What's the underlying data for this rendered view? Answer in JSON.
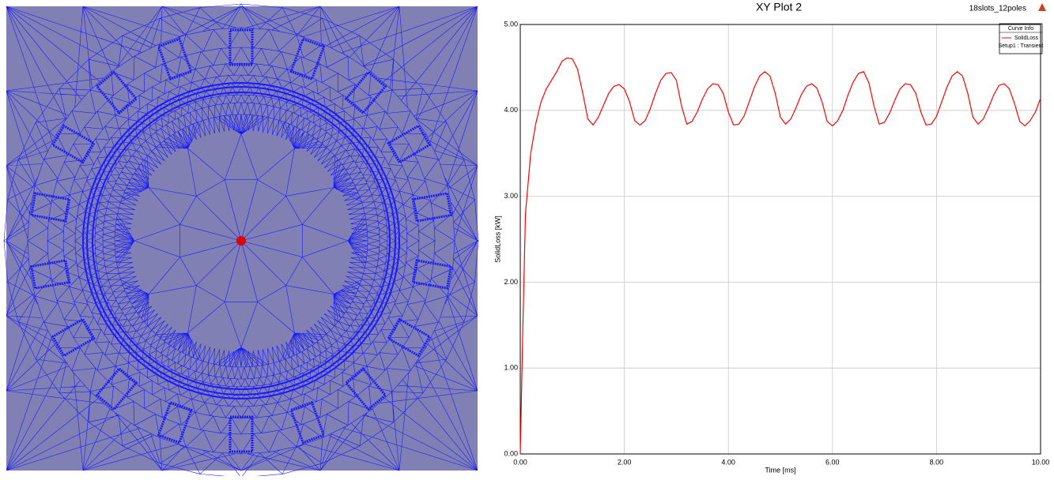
{
  "chart_data": {
    "type": "line",
    "title": "XY Plot 2",
    "annotation": "18slots_12poles",
    "legend_title": "Curve Info",
    "x_label": "Time [ms]",
    "y_label": "SolidLoss [kW]",
    "x": [
      0,
      0.05,
      0.1,
      0.2,
      0.3,
      0.4,
      0.5,
      0.6,
      0.7,
      0.8,
      0.9,
      1.0,
      1.1,
      1.2,
      1.3,
      1.4,
      1.5,
      1.6,
      1.7,
      1.8,
      1.9,
      2.0,
      2.1,
      2.2,
      2.3,
      2.4,
      2.5,
      2.6,
      2.7,
      2.8,
      2.9,
      3.0,
      3.1,
      3.2,
      3.3,
      3.4,
      3.5,
      3.6,
      3.7,
      3.8,
      3.9,
      4.0,
      4.1,
      4.2,
      4.3,
      4.4,
      4.5,
      4.6,
      4.7,
      4.8,
      4.9,
      5.0,
      5.1,
      5.2,
      5.3,
      5.4,
      5.5,
      5.6,
      5.7,
      5.8,
      5.9,
      6.0,
      6.1,
      6.2,
      6.3,
      6.4,
      6.5,
      6.6,
      6.7,
      6.8,
      6.9,
      7.0,
      7.1,
      7.2,
      7.3,
      7.4,
      7.5,
      7.6,
      7.7,
      7.8,
      7.9,
      8.0,
      8.1,
      8.2,
      8.3,
      8.4,
      8.5,
      8.6,
      8.7,
      8.8,
      8.9,
      9.0,
      9.1,
      9.2,
      9.3,
      9.4,
      9.5,
      9.6,
      9.7,
      9.8,
      9.9,
      10.0
    ],
    "series": [
      {
        "name": "SolidLoss",
        "setup": "Setup1 : Transient",
        "color": "#ff0000",
        "values": [
          0,
          1.5,
          2.8,
          3.5,
          3.85,
          4.1,
          4.25,
          4.35,
          4.45,
          4.57,
          4.61,
          4.6,
          4.48,
          4.2,
          3.9,
          3.83,
          3.92,
          4.06,
          4.2,
          4.28,
          4.3,
          4.25,
          4.1,
          3.88,
          3.83,
          3.88,
          4.02,
          4.2,
          4.35,
          4.43,
          4.44,
          4.35,
          4.05,
          3.84,
          3.87,
          3.98,
          4.13,
          4.25,
          4.31,
          4.3,
          4.2,
          3.98,
          3.83,
          3.84,
          3.93,
          4.1,
          4.27,
          4.4,
          4.45,
          4.4,
          4.2,
          3.92,
          3.84,
          3.9,
          4.03,
          4.18,
          4.28,
          4.31,
          4.26,
          4.1,
          3.87,
          3.82,
          3.88,
          4.0,
          4.18,
          4.33,
          4.43,
          4.45,
          4.32,
          4.05,
          3.84,
          3.86,
          3.97,
          4.12,
          4.25,
          4.31,
          4.3,
          4.2,
          3.98,
          3.83,
          3.84,
          3.93,
          4.1,
          4.27,
          4.4,
          4.45,
          4.4,
          4.2,
          3.92,
          3.84,
          3.9,
          4.03,
          4.18,
          4.29,
          4.31,
          4.25,
          4.08,
          3.87,
          3.82,
          3.88,
          3.98,
          4.14
        ]
      }
    ],
    "xlim": [
      0,
      10
    ],
    "ylim": [
      0,
      5
    ],
    "xticks": [
      {
        "value": 0,
        "label": "0.00"
      },
      {
        "value": 2,
        "label": "2.00"
      },
      {
        "value": 4,
        "label": "4.00"
      },
      {
        "value": 6,
        "label": "6.00"
      },
      {
        "value": 8,
        "label": "8.00"
      },
      {
        "value": 10,
        "label": "10.00"
      }
    ],
    "yticks": [
      {
        "value": 0,
        "label": "0.00"
      },
      {
        "value": 1,
        "label": "1.00"
      },
      {
        "value": 2,
        "label": "2.00"
      },
      {
        "value": 3,
        "label": "3.00"
      },
      {
        "value": 4,
        "label": "4.00"
      },
      {
        "value": 5,
        "label": "5.00"
      }
    ],
    "grid": true
  }
}
